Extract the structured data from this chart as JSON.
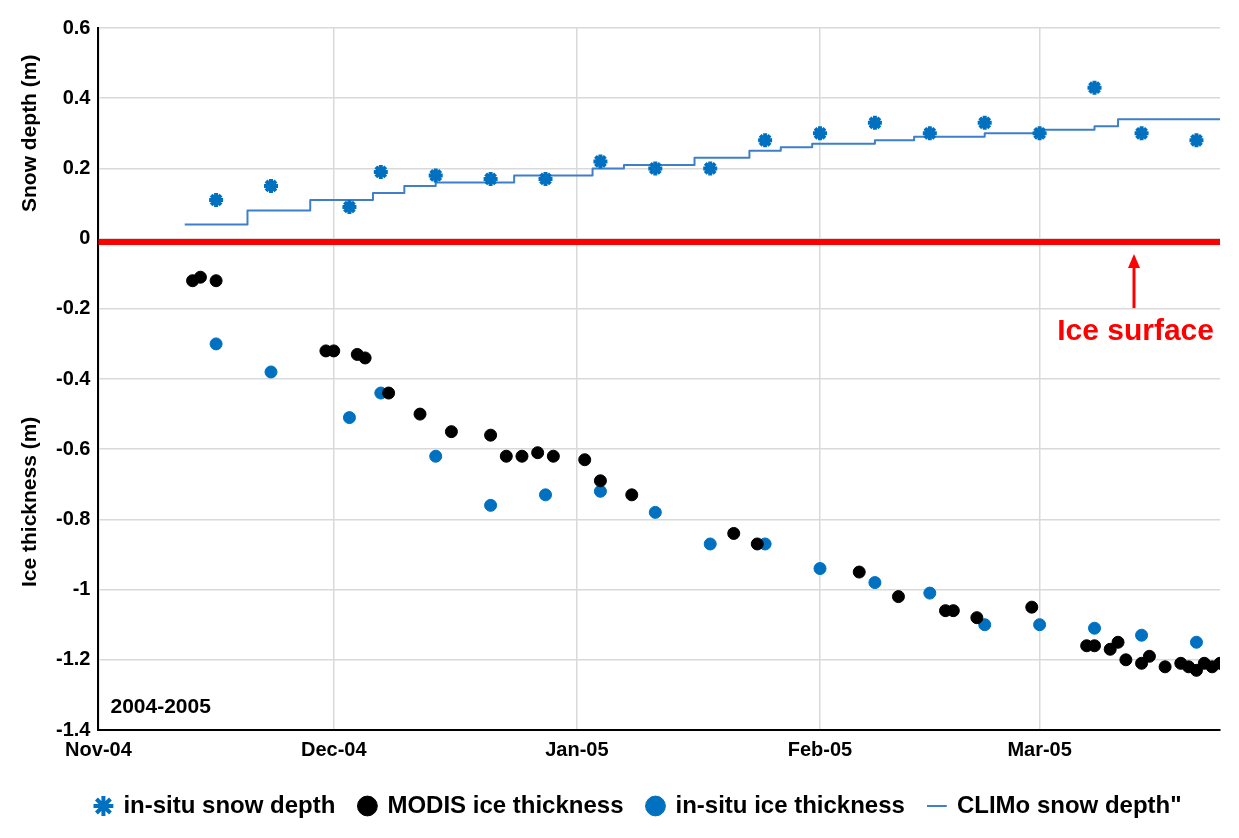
{
  "chart_data": {
    "type": "scatter",
    "ylabel": "Snow depth (m)",
    "annotations": [
      "2004-2005",
      "Ice thickness (m)"
    ],
    "xlim": [
      "2004-11-01",
      "2005-03-24"
    ],
    "xticks": [
      {
        "value": "2004-11-01",
        "label": "Nov-04"
      },
      {
        "value": "2004-12-01",
        "label": "Dec-04"
      },
      {
        "value": "2005-01-01",
        "label": "Jan-05"
      },
      {
        "value": "2005-02-01",
        "label": "Feb-05"
      },
      {
        "value": "2005-03-01",
        "label": "Mar-05"
      }
    ],
    "ylim": [
      -1.4,
      0.6
    ],
    "yticks": [
      -1.4,
      -1.2,
      -1,
      -0.8,
      -0.6,
      -0.4,
      -0.2,
      0,
      0.2,
      0.4,
      0.6
    ],
    "grid": true,
    "legend": "bottom",
    "ref_lines": [
      {
        "axis": "y",
        "value": -0.01,
        "label": "Ice surface",
        "color": "#ff0000"
      }
    ],
    "series": [
      {
        "name": "in-situ snow depth",
        "type": "scatter",
        "marker": "cross",
        "color": "#0070c0",
        "x": [
          "2004-11-16",
          "2004-11-23",
          "2004-12-03",
          "2004-12-07",
          "2004-12-14",
          "2004-12-21",
          "2004-12-28",
          "2005-01-04",
          "2005-01-11",
          "2005-01-18",
          "2005-01-25",
          "2005-02-01",
          "2005-02-08",
          "2005-02-15",
          "2005-02-22",
          "2005-03-01",
          "2005-03-08",
          "2005-03-14",
          "2005-03-21"
        ],
        "values": [
          0.11,
          0.15,
          0.09,
          0.19,
          0.18,
          0.17,
          0.17,
          0.22,
          0.2,
          0.2,
          0.28,
          0.3,
          0.33,
          0.3,
          0.33,
          0.3,
          0.43,
          0.3,
          0.28
        ]
      },
      {
        "name": "MODIS ice thickness",
        "type": "scatter",
        "marker": "circle",
        "color": "#000000",
        "x": [
          "2004-11-13",
          "2004-11-14",
          "2004-11-16",
          "2004-11-30",
          "2004-12-01",
          "2004-12-04",
          "2004-12-05",
          "2004-12-08",
          "2004-12-12",
          "2004-12-16",
          "2004-12-21",
          "2004-12-23",
          "2004-12-25",
          "2004-12-27",
          "2004-12-29",
          "2005-01-02",
          "2005-01-04",
          "2005-01-08",
          "2005-01-21",
          "2005-01-24",
          "2005-02-06",
          "2005-02-11",
          "2005-02-17",
          "2005-02-18",
          "2005-02-21",
          "2005-02-28",
          "2005-03-07",
          "2005-03-08",
          "2005-03-10",
          "2005-03-11",
          "2005-03-12",
          "2005-03-14",
          "2005-03-15",
          "2005-03-17",
          "2005-03-19",
          "2005-03-20",
          "2005-03-21",
          "2005-03-22",
          "2005-03-23",
          "2005-03-24"
        ],
        "values": [
          -0.12,
          -0.11,
          -0.12,
          -0.32,
          -0.32,
          -0.33,
          -0.34,
          -0.44,
          -0.5,
          -0.55,
          -0.56,
          -0.62,
          -0.62,
          -0.61,
          -0.62,
          -0.63,
          -0.69,
          -0.73,
          -0.84,
          -0.87,
          -0.95,
          -1.02,
          -1.06,
          -1.06,
          -1.08,
          -1.05,
          -1.16,
          -1.16,
          -1.17,
          -1.15,
          -1.2,
          -1.21,
          -1.19,
          -1.22,
          -1.21,
          -1.22,
          -1.23,
          -1.21,
          -1.22,
          -1.21
        ]
      },
      {
        "name": "in-situ ice thickness",
        "type": "scatter",
        "marker": "circle",
        "color": "#0070c0",
        "x": [
          "2004-11-16",
          "2004-11-23",
          "2004-12-03",
          "2004-12-07",
          "2004-12-14",
          "2004-12-21",
          "2004-12-28",
          "2005-01-04",
          "2005-01-11",
          "2005-01-18",
          "2005-01-25",
          "2005-02-01",
          "2005-02-08",
          "2005-02-15",
          "2005-02-22",
          "2005-03-01",
          "2005-03-08",
          "2005-03-14",
          "2005-03-21"
        ],
        "values": [
          -0.3,
          -0.38,
          -0.51,
          -0.44,
          -0.62,
          -0.76,
          -0.73,
          -0.72,
          -0.78,
          -0.87,
          -0.87,
          -0.94,
          -0.98,
          -1.01,
          -1.1,
          -1.1,
          -1.11,
          -1.13,
          -1.15
        ]
      },
      {
        "name": "CLIMo snow depth\"",
        "type": "step",
        "marker": "none",
        "color": "#3f7fca",
        "x": [
          "2004-11-12",
          "2004-11-20",
          "2004-11-28",
          "2004-12-06",
          "2004-12-10",
          "2004-12-14",
          "2004-12-24",
          "2005-01-03",
          "2005-01-07",
          "2005-01-16",
          "2005-01-23",
          "2005-01-27",
          "2005-01-31",
          "2005-02-08",
          "2005-02-13",
          "2005-02-22",
          "2005-03-01",
          "2005-03-08",
          "2005-03-11",
          "2005-03-24"
        ],
        "values": [
          0.04,
          0.08,
          0.11,
          0.13,
          0.15,
          0.16,
          0.18,
          0.2,
          0.21,
          0.23,
          0.25,
          0.26,
          0.27,
          0.28,
          0.29,
          0.3,
          0.31,
          0.32,
          0.34,
          0.34
        ]
      }
    ]
  }
}
